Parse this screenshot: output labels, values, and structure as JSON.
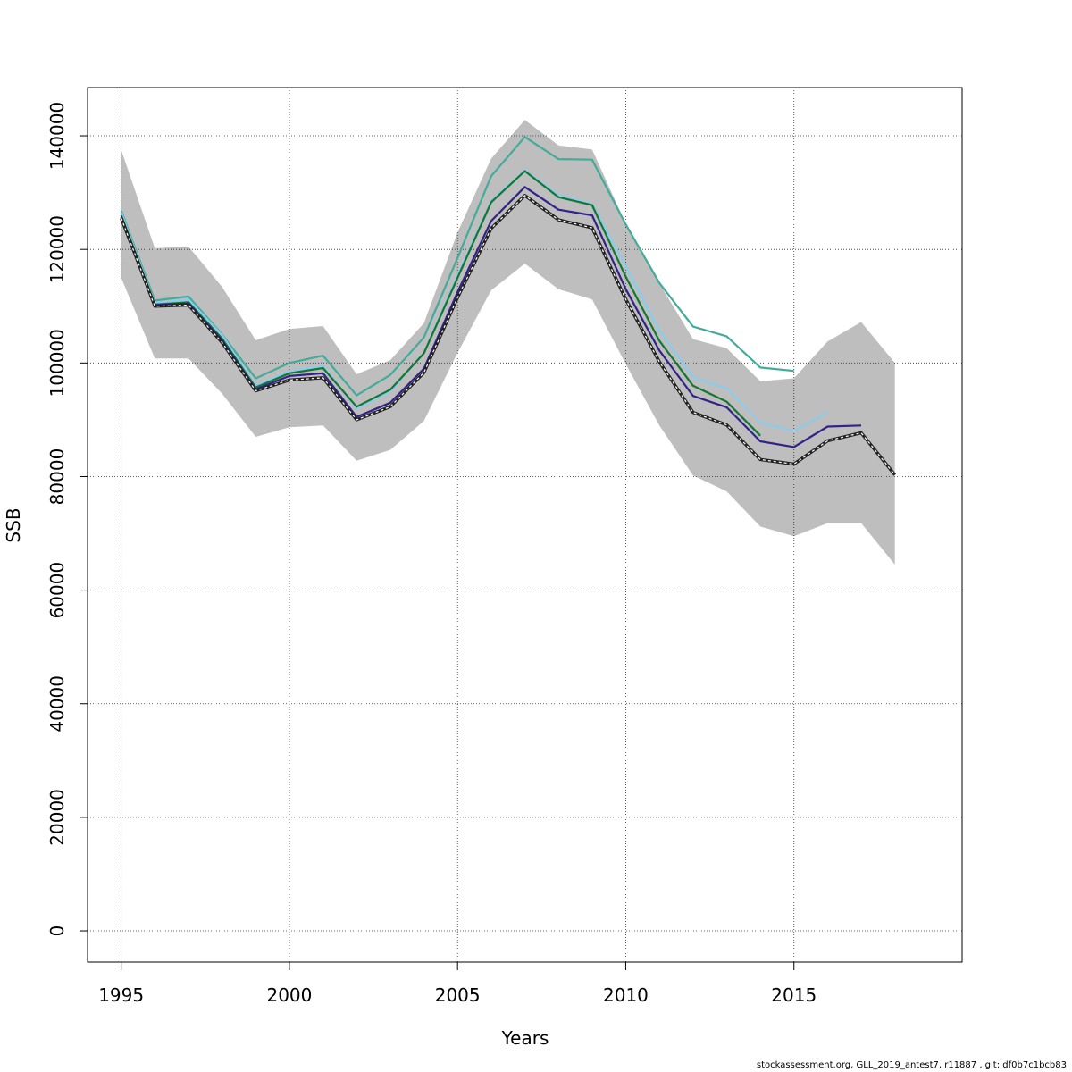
{
  "chart_data": {
    "type": "line",
    "xlabel": "Years",
    "ylabel": "SSB",
    "xlim": [
      1994,
      2020
    ],
    "ylim": [
      -5500,
      148500
    ],
    "x_ticks": [
      1995,
      2000,
      2005,
      2010,
      2015
    ],
    "y_ticks": [
      0,
      20000,
      40000,
      60000,
      80000,
      100000,
      120000,
      140000
    ],
    "grid": true,
    "band": {
      "x": [
        1995,
        1996,
        1997,
        1998,
        1999,
        2000,
        2001,
        2002,
        2003,
        2004,
        2005,
        2006,
        2007,
        2008,
        2009,
        2010,
        2011,
        2012,
        2013,
        2014,
        2015,
        2016,
        2017,
        2018
      ],
      "upper": [
        137500,
        120200,
        120500,
        113400,
        104000,
        106000,
        106500,
        98000,
        100500,
        107000,
        123000,
        136000,
        142800,
        138300,
        137600,
        124500,
        114000,
        104200,
        102600,
        96800,
        97300,
        103800,
        107200,
        100000
      ],
      "lower": [
        115000,
        100800,
        100800,
        94600,
        87000,
        88700,
        89000,
        82800,
        84700,
        89800,
        101800,
        112800,
        117500,
        113000,
        111200,
        99800,
        89000,
        80200,
        77400,
        71200,
        69500,
        71800,
        71800,
        64500
      ],
      "color": "#bebebe"
    },
    "series": [
      {
        "color": "#44aa99",
        "dashed": false,
        "x": [
          1995,
          1996,
          1997,
          1998,
          1999,
          2000,
          2001,
          2002,
          2003,
          2004,
          2005,
          2006,
          2007,
          2008,
          2009,
          2010,
          2011,
          2012,
          2013,
          2014,
          2015
        ],
        "values": [
          126800,
          111000,
          111700,
          105000,
          97300,
          100000,
          101300,
          94300,
          97900,
          104500,
          118500,
          132900,
          139800,
          135900,
          135800,
          124400,
          114100,
          106400,
          104700,
          99200,
          98600
        ]
      },
      {
        "color": "#88ccee",
        "dashed": false,
        "x": [
          1995,
          1996,
          1997,
          1998,
          1999,
          2000,
          2001,
          2002,
          2003,
          2004,
          2005,
          2006,
          2007,
          2008,
          2009,
          2010,
          2011,
          2012,
          2013,
          2014,
          2015,
          2016
        ],
        "values": [
          126500,
          110500,
          111200,
          104900,
          96000,
          98500,
          99500,
          92000,
          95000,
          101800,
          115500,
          128500,
          134000,
          129500,
          128000,
          117000,
          105700,
          97500,
          95500,
          89500,
          88000,
          91300
        ]
      },
      {
        "color": "#117733",
        "dashed": false,
        "x": [
          1995,
          1996,
          1997,
          1998,
          1999,
          2000,
          2001,
          2002,
          2003,
          2004,
          2005,
          2006,
          2007,
          2008,
          2009,
          2010,
          2011,
          2012,
          2013,
          2014
        ],
        "values": [
          126000,
          110300,
          110700,
          104300,
          95700,
          98200,
          99100,
          92300,
          95300,
          101700,
          115000,
          128300,
          133800,
          129200,
          127800,
          115200,
          103900,
          96000,
          93200,
          87200
        ]
      },
      {
        "color": "#332288",
        "dashed": false,
        "x": [
          1995,
          1996,
          1997,
          1998,
          1999,
          2000,
          2001,
          2002,
          2003,
          2004,
          2005,
          2006,
          2007,
          2008,
          2009,
          2010,
          2011,
          2012,
          2013,
          2014,
          2015,
          2016,
          2017
        ],
        "values": [
          125800,
          110200,
          110500,
          104000,
          95400,
          97700,
          98200,
          90500,
          93000,
          99000,
          112500,
          125000,
          131000,
          127000,
          126000,
          113000,
          102200,
          94200,
          92200,
          86200,
          85200,
          88800,
          89000
        ]
      },
      {
        "color": "#222222",
        "dashed": true,
        "x": [
          1995,
          1996,
          1997,
          1998,
          1999,
          2000,
          2001,
          2002,
          2003,
          2004,
          2005,
          2006,
          2007,
          2008,
          2009,
          2010,
          2011,
          2012,
          2013,
          2014,
          2015,
          2016,
          2017,
          2018
        ],
        "values": [
          125500,
          110000,
          110200,
          103600,
          95100,
          97000,
          97400,
          90000,
          92300,
          98300,
          111500,
          123700,
          129500,
          125200,
          123800,
          111200,
          100200,
          91300,
          89100,
          83000,
          82200,
          86300,
          87700,
          80300
        ]
      }
    ]
  },
  "footer": "stockassessment.org, GLL_2019_antest7, r11887 , git: df0b7c1bcb83"
}
